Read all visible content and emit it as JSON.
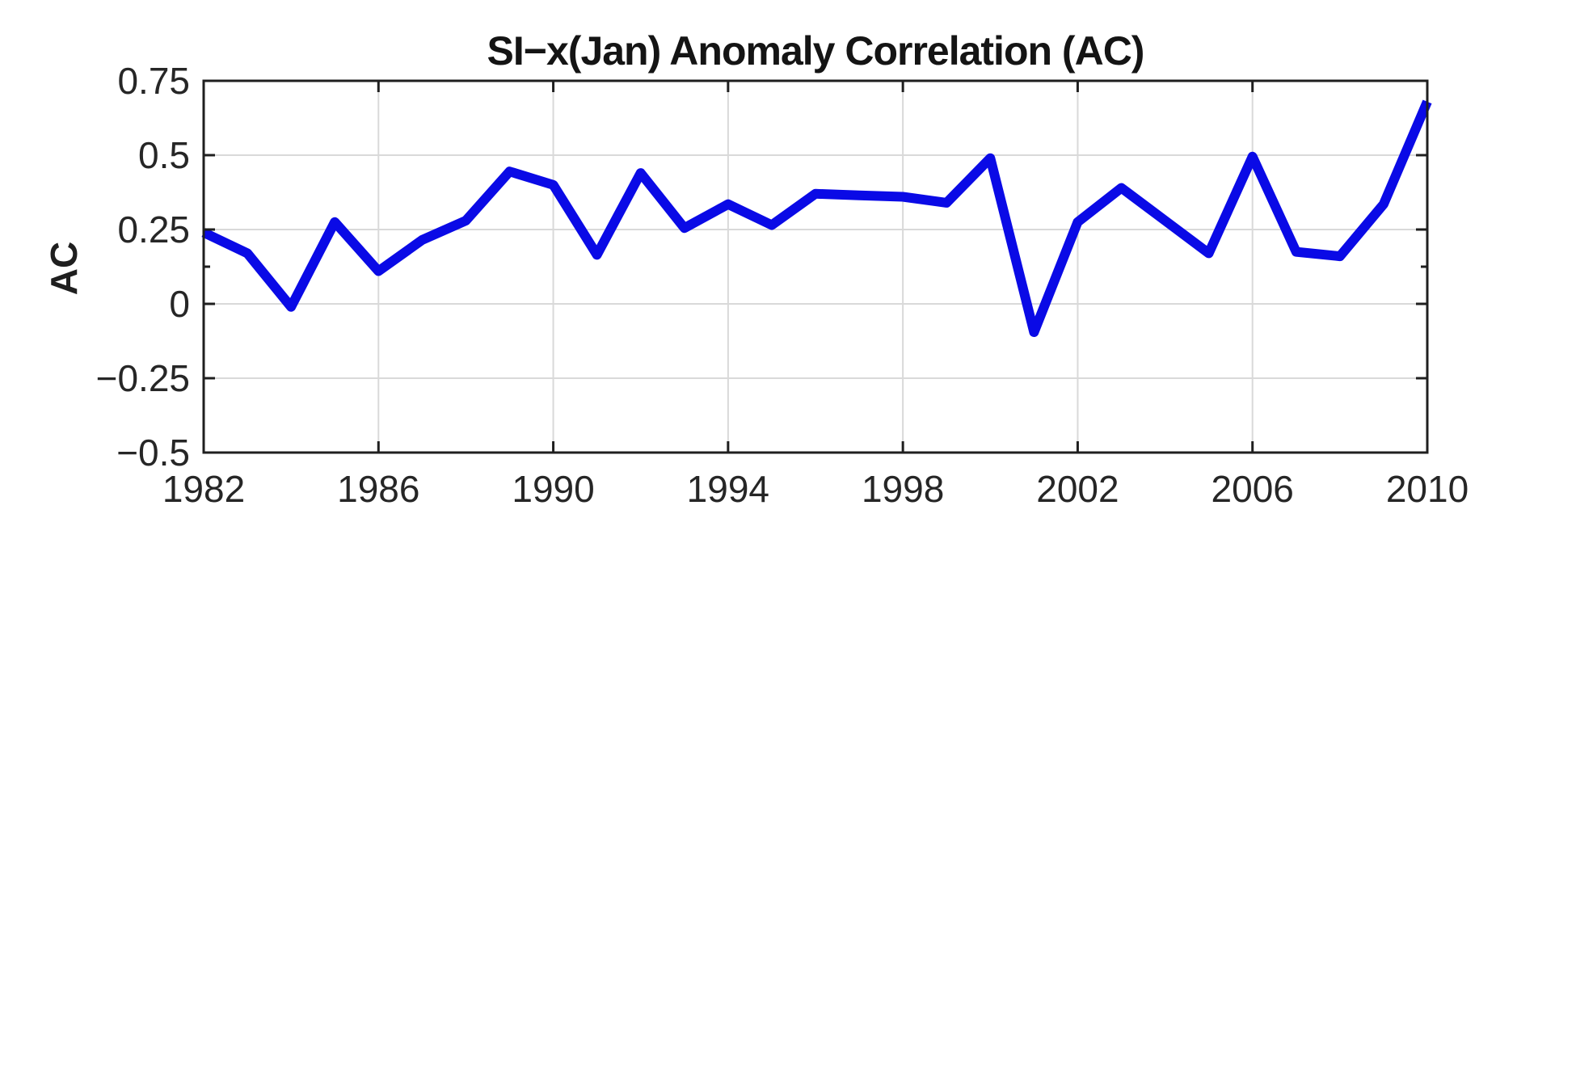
{
  "figure": {
    "background": "#ffffff"
  },
  "chart_data": {
    "type": "line",
    "title": "SI−x(Jan) Anomaly Correlation (AC)",
    "xlabel": "",
    "ylabel": "AC",
    "x": [
      1982,
      1983,
      1984,
      1985,
      1986,
      1987,
      1988,
      1989,
      1990,
      1991,
      1992,
      1993,
      1994,
      1995,
      1996,
      1997,
      1998,
      1999,
      2000,
      2001,
      2002,
      2003,
      2004,
      2005,
      2006,
      2007,
      2008,
      2009,
      2010
    ],
    "series": [
      {
        "name": "AC",
        "values": [
          0.24,
          0.17,
          -0.01,
          0.275,
          0.11,
          0.215,
          0.28,
          0.445,
          0.4,
          0.165,
          0.44,
          0.255,
          0.335,
          0.265,
          0.37,
          0.365,
          0.36,
          0.34,
          0.49,
          -0.095,
          0.275,
          0.39,
          0.28,
          0.17,
          0.495,
          0.175,
          0.16,
          0.335,
          0.68
        ]
      }
    ],
    "xlim": [
      1982,
      2010
    ],
    "ylim": [
      -0.5,
      0.75
    ],
    "xticks": {
      "values": [
        1982,
        1986,
        1990,
        1994,
        1998,
        2002,
        2006,
        2010
      ],
      "labels": [
        "1982",
        "1986",
        "1990",
        "1994",
        "1998",
        "2002",
        "2006",
        "2010"
      ]
    },
    "yticks": {
      "values": [
        0.75,
        0.5,
        0.25,
        0,
        -0.25,
        -0.5
      ],
      "labels": [
        "0.75",
        "0.5",
        "0.25",
        "0",
        "−0.25",
        "−0.5"
      ]
    },
    "minor_yticks": [
      0.125
    ],
    "grid": true,
    "legend_position": "none",
    "colors": {
      "line": "#0a0ae6",
      "grid": "#d9d9d9",
      "axis": "#1f1f1f",
      "tick_label": "#262626",
      "background": "#ffffff"
    }
  }
}
